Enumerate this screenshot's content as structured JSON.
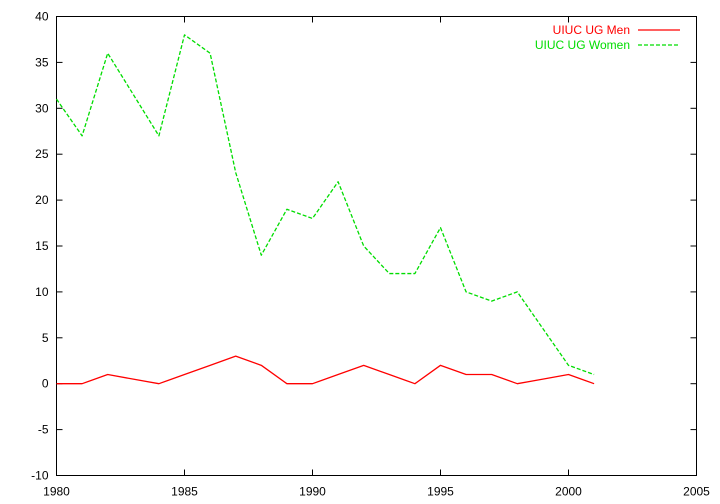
{
  "chart_data": {
    "type": "line",
    "title": "",
    "xlabel": "",
    "ylabel": "",
    "xlim": [
      1980,
      2005
    ],
    "ylim": [
      -10,
      40
    ],
    "xticks": [
      1980,
      1985,
      1990,
      1995,
      2000,
      2005
    ],
    "yticks": [
      -10,
      -5,
      0,
      5,
      10,
      15,
      20,
      25,
      30,
      35,
      40
    ],
    "grid": false,
    "legend_position": "top-right",
    "series": [
      {
        "name": "UIUC UG Men",
        "color": "#ff0000",
        "dash": "solid",
        "x": [
          1980,
          1981,
          1982,
          1983,
          1984,
          1985,
          1986,
          1987,
          1988,
          1989,
          1990,
          1991,
          1992,
          1993,
          1994,
          1995,
          1996,
          1997,
          1998,
          1999,
          2000,
          2001
        ],
        "y": [
          0,
          0,
          1,
          0.5,
          0,
          1,
          2,
          3,
          2,
          0,
          0,
          1,
          2,
          1,
          0,
          2,
          1,
          1,
          0,
          0.5,
          1,
          0
        ]
      },
      {
        "name": "UIUC UG Women",
        "color": "#00dd00",
        "dash": "dashed",
        "x": [
          1980,
          1981,
          1982,
          1983,
          1984,
          1985,
          1986,
          1987,
          1988,
          1989,
          1990,
          1991,
          1992,
          1993,
          1994,
          1995,
          1996,
          1997,
          1998,
          1999,
          2000,
          2001
        ],
        "y": [
          31,
          27,
          36,
          31.5,
          27,
          38,
          36,
          23,
          14,
          19,
          18,
          22,
          15,
          12,
          12,
          17,
          10,
          9,
          10,
          6,
          2,
          1
        ]
      }
    ]
  }
}
